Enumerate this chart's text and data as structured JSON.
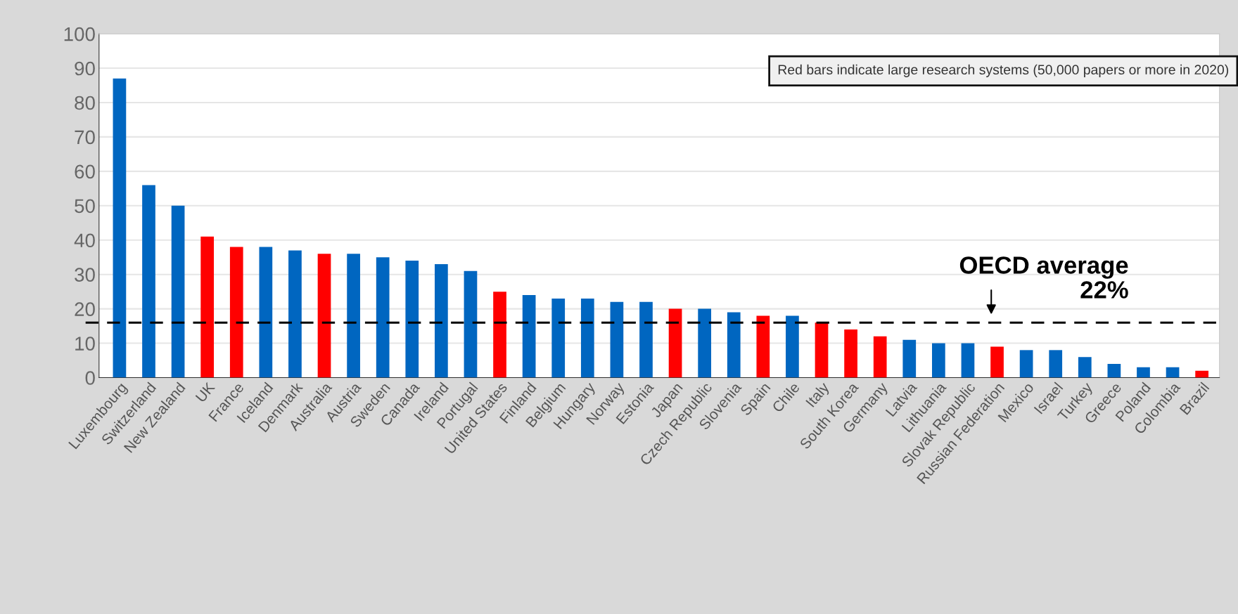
{
  "chart_data": {
    "type": "bar",
    "categories": [
      "Luxembourg",
      "Switzerland",
      "New Zealand",
      "UK",
      "France",
      "Iceland",
      "Denmark",
      "Australia",
      "Austria",
      "Sweden",
      "Canada",
      "Ireland",
      "Portugal",
      "United States",
      "Finland",
      "Belgium",
      "Hungary",
      "Norway",
      "Estonia",
      "Japan",
      "Czech Republic",
      "Slovenia",
      "Spain",
      "Chile",
      "Italy",
      "South Korea",
      "Germany",
      "Latvia",
      "Lithuania",
      "Slovak Republic",
      "Russian Federation",
      "Mexico",
      "Israel",
      "Turkey",
      "Greece",
      "Poland",
      "Colombia",
      "Brazil"
    ],
    "values": [
      87,
      56,
      50,
      41,
      38,
      38,
      37,
      36,
      36,
      35,
      34,
      33,
      31,
      25,
      24,
      23,
      23,
      22,
      22,
      20,
      20,
      19,
      18,
      18,
      16,
      14,
      12,
      11,
      10,
      10,
      9,
      8,
      8,
      6,
      4,
      3,
      3,
      2
    ],
    "colors": [
      "#0066c0",
      "#0066c0",
      "#0066c0",
      "#ff0000",
      "#ff0000",
      "#0066c0",
      "#0066c0",
      "#ff0000",
      "#0066c0",
      "#0066c0",
      "#0066c0",
      "#0066c0",
      "#0066c0",
      "#ff0000",
      "#0066c0",
      "#0066c0",
      "#0066c0",
      "#0066c0",
      "#0066c0",
      "#ff0000",
      "#0066c0",
      "#0066c0",
      "#ff0000",
      "#0066c0",
      "#ff0000",
      "#ff0000",
      "#ff0000",
      "#0066c0",
      "#0066c0",
      "#0066c0",
      "#ff0000",
      "#0066c0",
      "#0066c0",
      "#0066c0",
      "#0066c0",
      "#0066c0",
      "#0066c0",
      "#ff0000"
    ],
    "ylim": [
      0,
      100
    ],
    "yticks": [
      0,
      10,
      20,
      30,
      40,
      50,
      60,
      70,
      80,
      90,
      100
    ],
    "grid": "y",
    "ref_lines": [
      {
        "axis": "y",
        "value": 16,
        "label": "OECD average\n22%",
        "color": "#000000",
        "line_style": "dashed"
      }
    ],
    "annotations": [
      "Red bars indicate large research systems (50,000 papers or more in 2020)"
    ]
  }
}
